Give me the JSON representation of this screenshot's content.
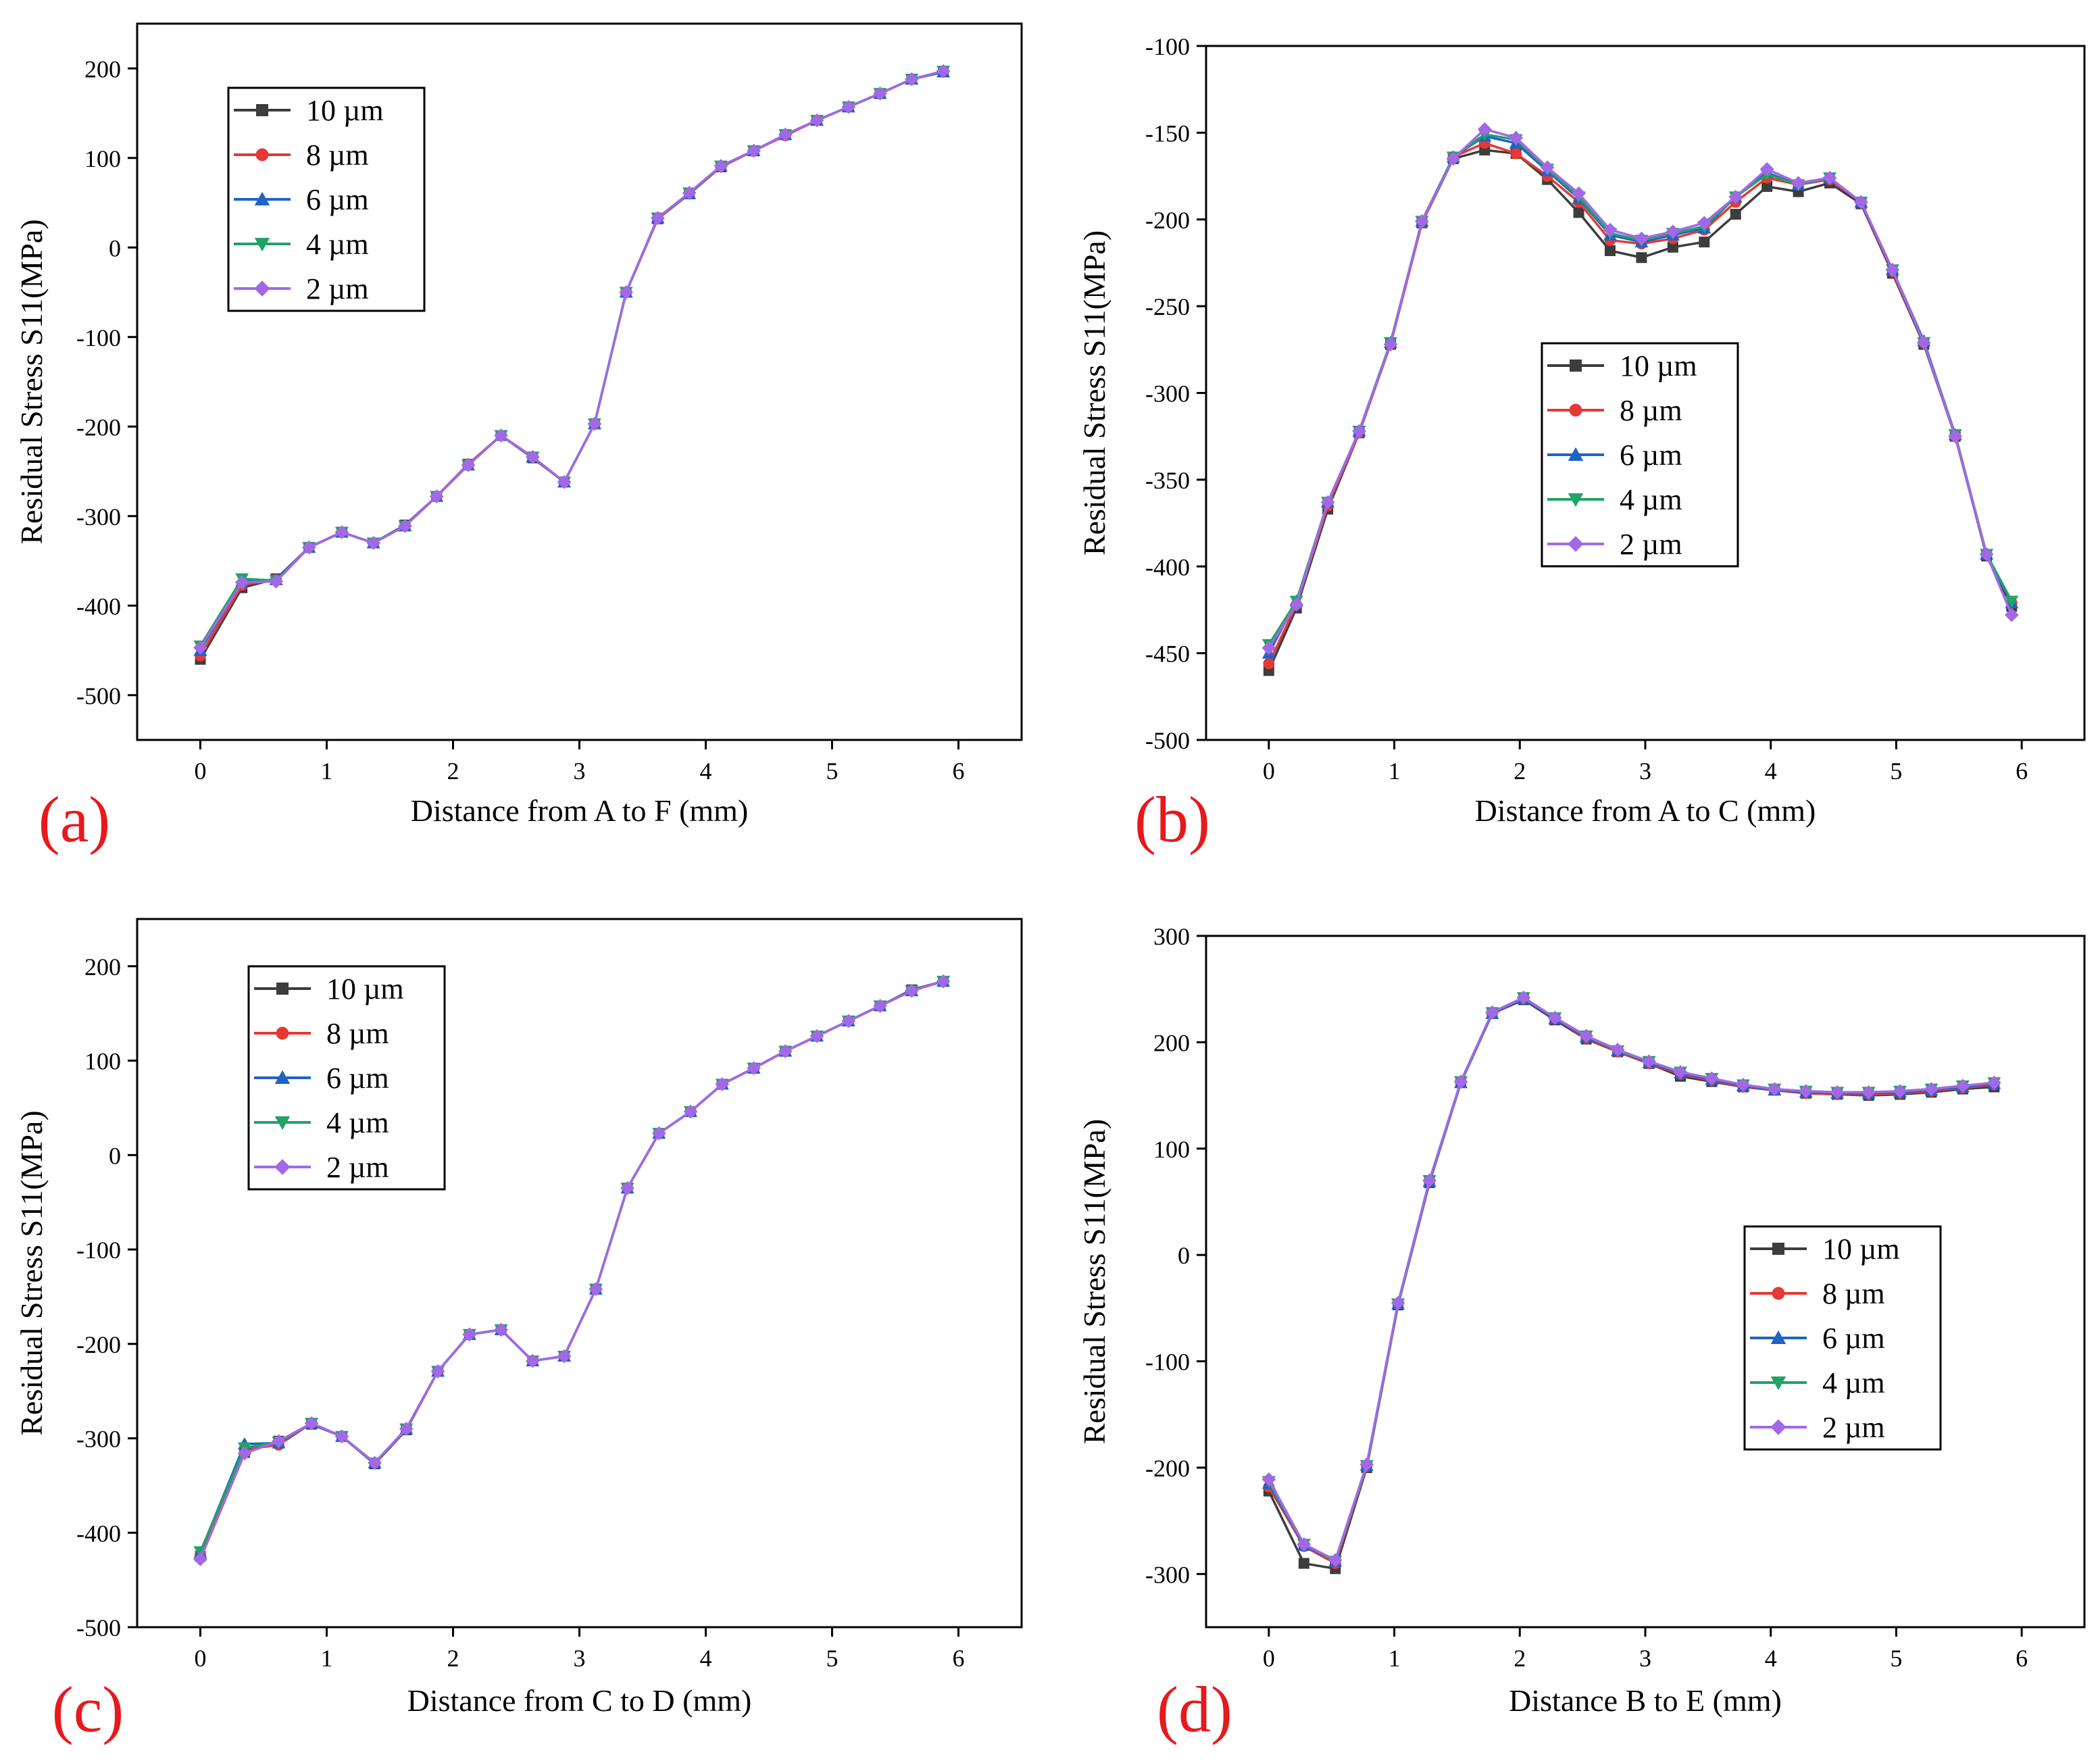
{
  "figure_colors": {
    "10 µm": "#3d3d3d",
    "8 µm": "#e53935",
    "6 µm": "#1f63c6",
    "4 µm": "#21a366",
    "2 µm": "#a368e6"
  },
  "chart_data": [
    {
      "panel": "(a)",
      "type": "line",
      "title": "",
      "xlabel": "Distance from A to F (mm)",
      "ylabel": "Residual Stress S11(MPa)",
      "xlim": [
        -0.5,
        6.5
      ],
      "ylim": [
        -550,
        250
      ],
      "xticks": [
        0,
        1,
        2,
        3,
        4,
        5,
        6
      ],
      "yticks": [
        -500,
        -400,
        -300,
        -200,
        -100,
        0,
        100,
        200
      ],
      "legend_position": "top-left",
      "grid": false,
      "x": [
        0,
        0.33,
        0.6,
        0.86,
        1.12,
        1.37,
        1.62,
        1.87,
        2.12,
        2.38,
        2.63,
        2.88,
        3.12,
        3.37,
        3.62,
        3.87,
        4.12,
        4.38,
        4.63,
        4.88,
        5.13,
        5.38,
        5.63,
        5.88
      ],
      "series": [
        {
          "name": "10 µm",
          "marker": "square",
          "values": [
            -460,
            -380,
            -370,
            -335,
            -318,
            -330,
            -310,
            -278,
            -242,
            -210,
            -235,
            -262,
            -197,
            -50,
            32,
            60,
            90,
            108,
            126,
            142,
            157,
            172,
            188,
            196
          ]
        },
        {
          "name": "8 µm",
          "marker": "circle",
          "values": [
            -456,
            -377,
            -371,
            -335,
            -318,
            -330,
            -311,
            -278,
            -242,
            -210,
            -234,
            -262,
            -197,
            -50,
            32,
            60,
            90,
            108,
            125,
            142,
            157,
            172,
            188,
            196
          ]
        },
        {
          "name": "6 µm",
          "marker": "triangle-up",
          "values": [
            -450,
            -373,
            -371,
            -335,
            -318,
            -330,
            -311,
            -278,
            -243,
            -210,
            -234,
            -262,
            -197,
            -50,
            33,
            60,
            91,
            108,
            126,
            142,
            157,
            172,
            188,
            196
          ]
        },
        {
          "name": "4 µm",
          "marker": "triangle-down",
          "values": [
            -445,
            -370,
            -372,
            -335,
            -318,
            -330,
            -311,
            -278,
            -243,
            -210,
            -234,
            -262,
            -197,
            -50,
            33,
            61,
            91,
            108,
            126,
            142,
            157,
            172,
            188,
            197
          ]
        },
        {
          "name": "2 µm",
          "marker": "diamond",
          "values": [
            -447,
            -374,
            -373,
            -335,
            -318,
            -330,
            -311,
            -278,
            -243,
            -210,
            -234,
            -262,
            -197,
            -50,
            33,
            61,
            91,
            108,
            126,
            142,
            157,
            172,
            188,
            197
          ]
        }
      ]
    },
    {
      "panel": "(b)",
      "type": "line",
      "title": "",
      "xlabel": "Distance from A to C (mm)",
      "ylabel": "Residual Stress S11(MPa)",
      "xlim": [
        -0.5,
        6.5
      ],
      "ylim": [
        -500,
        -100
      ],
      "xticks": [
        0,
        1,
        2,
        3,
        4,
        5,
        6
      ],
      "yticks": [
        -500,
        -450,
        -400,
        -350,
        -300,
        -250,
        -200,
        -150,
        -100
      ],
      "legend_position": "center-right",
      "grid": false,
      "x": [
        0,
        0.22,
        0.47,
        0.72,
        0.97,
        1.22,
        1.47,
        1.72,
        1.97,
        2.22,
        2.47,
        2.72,
        2.97,
        3.22,
        3.47,
        3.72,
        3.97,
        4.22,
        4.47,
        4.72,
        4.97,
        5.22,
        5.47,
        5.72,
        5.92
      ],
      "series": [
        {
          "name": "10 µm",
          "marker": "square",
          "values": [
            -460,
            -424,
            -367,
            -323,
            -272,
            -202,
            -165,
            -160,
            -162,
            -177,
            -196,
            -218,
            -222,
            -216,
            -213,
            -197,
            -181,
            -184,
            -179,
            -191,
            -231,
            -272,
            -325,
            -394,
            -423
          ]
        },
        {
          "name": "8 µm",
          "marker": "circle",
          "values": [
            -456,
            -422,
            -365,
            -323,
            -272,
            -202,
            -164,
            -156,
            -162,
            -175,
            -190,
            -212,
            -214,
            -211,
            -206,
            -190,
            -176,
            -180,
            -177,
            -190,
            -230,
            -271,
            -325,
            -393,
            -421
          ]
        },
        {
          "name": "6 µm",
          "marker": "triangle-up",
          "values": [
            -450,
            -420,
            -363,
            -322,
            -271,
            -201,
            -164,
            -152,
            -156,
            -172,
            -188,
            -209,
            -213,
            -209,
            -205,
            -187,
            -173,
            -180,
            -176,
            -190,
            -229,
            -270,
            -324,
            -393,
            -421
          ]
        },
        {
          "name": "4 µm",
          "marker": "triangle-down",
          "values": [
            -445,
            -420,
            -363,
            -322,
            -271,
            -201,
            -164,
            -151,
            -154,
            -171,
            -187,
            -208,
            -212,
            -208,
            -204,
            -187,
            -174,
            -180,
            -176,
            -190,
            -229,
            -271,
            -324,
            -393,
            -420
          ]
        },
        {
          "name": "2 µm",
          "marker": "diamond",
          "values": [
            -447,
            -422,
            -363,
            -322,
            -272,
            -201,
            -165,
            -148,
            -153,
            -170,
            -185,
            -206,
            -211,
            -207,
            -202,
            -187,
            -171,
            -179,
            -176,
            -190,
            -229,
            -271,
            -325,
            -393,
            -428
          ]
        }
      ]
    },
    {
      "panel": "(c)",
      "type": "line",
      "title": "",
      "xlabel": "Distance from C to D (mm)",
      "ylabel": "Residual Stress S11(MPa)",
      "xlim": [
        -0.5,
        6.5
      ],
      "ylim": [
        -500,
        250
      ],
      "xticks": [
        0,
        1,
        2,
        3,
        4,
        5,
        6
      ],
      "yticks": [
        -500,
        -400,
        -300,
        -200,
        -100,
        0,
        100,
        200
      ],
      "legend_position": "top-left",
      "grid": false,
      "x": [
        0,
        0.35,
        0.62,
        0.88,
        1.12,
        1.38,
        1.63,
        1.88,
        2.13,
        2.38,
        2.63,
        2.88,
        3.13,
        3.38,
        3.63,
        3.88,
        4.13,
        4.38,
        4.63,
        4.88,
        5.13,
        5.38,
        5.63,
        5.88
      ],
      "series": [
        {
          "name": "10 µm",
          "marker": "square",
          "values": [
            -425,
            -315,
            -303,
            -285,
            -298,
            -327,
            -291,
            -229,
            -190,
            -185,
            -218,
            -213,
            -142,
            -35,
            23,
            46,
            75,
            92,
            110,
            126,
            142,
            158,
            175,
            184
          ]
        },
        {
          "name": "8 µm",
          "marker": "circle",
          "values": [
            -423,
            -312,
            -307,
            -284,
            -298,
            -326,
            -290,
            -229,
            -190,
            -185,
            -218,
            -213,
            -142,
            -35,
            23,
            46,
            75,
            92,
            110,
            126,
            142,
            158,
            174,
            184
          ]
        },
        {
          "name": "6 µm",
          "marker": "triangle-up",
          "values": [
            -421,
            -306,
            -305,
            -284,
            -298,
            -326,
            -290,
            -229,
            -190,
            -185,
            -218,
            -213,
            -142,
            -35,
            23,
            46,
            75,
            92,
            110,
            126,
            142,
            158,
            174,
            184
          ]
        },
        {
          "name": "4 µm",
          "marker": "triangle-down",
          "values": [
            -420,
            -310,
            -304,
            -284,
            -298,
            -326,
            -290,
            -229,
            -190,
            -185,
            -218,
            -213,
            -142,
            -35,
            23,
            46,
            75,
            92,
            110,
            126,
            142,
            158,
            174,
            184
          ]
        },
        {
          "name": "2 µm",
          "marker": "diamond",
          "values": [
            -428,
            -316,
            -303,
            -284,
            -298,
            -326,
            -290,
            -229,
            -190,
            -185,
            -218,
            -213,
            -142,
            -35,
            23,
            46,
            75,
            92,
            110,
            126,
            142,
            158,
            174,
            184
          ]
        }
      ]
    },
    {
      "panel": "(d)",
      "type": "line",
      "title": "",
      "xlabel": "Distance B to E (mm)",
      "ylabel": "Residual Stress S11(MPa)",
      "xlim": [
        -0.5,
        6.5
      ],
      "ylim": [
        -350,
        300
      ],
      "xticks": [
        0,
        1,
        2,
        3,
        4,
        5,
        6
      ],
      "yticks": [
        -300,
        -200,
        -100,
        0,
        100,
        200,
        300
      ],
      "legend_position": "center-right",
      "grid": false,
      "x": [
        0,
        0.28,
        0.53,
        0.78,
        1.03,
        1.28,
        1.53,
        1.78,
        2.03,
        2.28,
        2.53,
        2.78,
        3.03,
        3.28,
        3.53,
        3.78,
        4.03,
        4.28,
        4.53,
        4.78,
        5.03,
        5.28,
        5.53,
        5.78
      ],
      "series": [
        {
          "name": "10 µm",
          "marker": "square",
          "values": [
            -222,
            -290,
            -295,
            -200,
            -47,
            68,
            162,
            227,
            240,
            221,
            203,
            191,
            180,
            168,
            163,
            158,
            155,
            152,
            151,
            150,
            151,
            153,
            156,
            158
          ]
        },
        {
          "name": "8 µm",
          "marker": "circle",
          "values": [
            -218,
            -274,
            -290,
            -199,
            -46,
            69,
            162,
            227,
            241,
            222,
            204,
            191,
            180,
            170,
            164,
            158,
            155,
            152,
            151,
            151,
            152,
            154,
            157,
            160
          ]
        },
        {
          "name": "6 µm",
          "marker": "triangle-up",
          "values": [
            -215,
            -273,
            -288,
            -198,
            -46,
            69,
            162,
            227,
            241,
            222,
            205,
            192,
            181,
            171,
            165,
            159,
            155,
            153,
            152,
            152,
            153,
            155,
            158,
            161
          ]
        },
        {
          "name": "4 µm",
          "marker": "triangle-down",
          "values": [
            -213,
            -272,
            -288,
            -198,
            -46,
            70,
            163,
            228,
            242,
            223,
            206,
            192,
            182,
            172,
            166,
            160,
            156,
            154,
            153,
            153,
            154,
            156,
            159,
            162
          ]
        },
        {
          "name": "2 µm",
          "marker": "diamond",
          "values": [
            -211,
            -272,
            -287,
            -197,
            -45,
            70,
            163,
            228,
            242,
            223,
            206,
            193,
            182,
            172,
            166,
            160,
            156,
            154,
            153,
            153,
            154,
            156,
            159,
            162
          ]
        }
      ]
    }
  ]
}
